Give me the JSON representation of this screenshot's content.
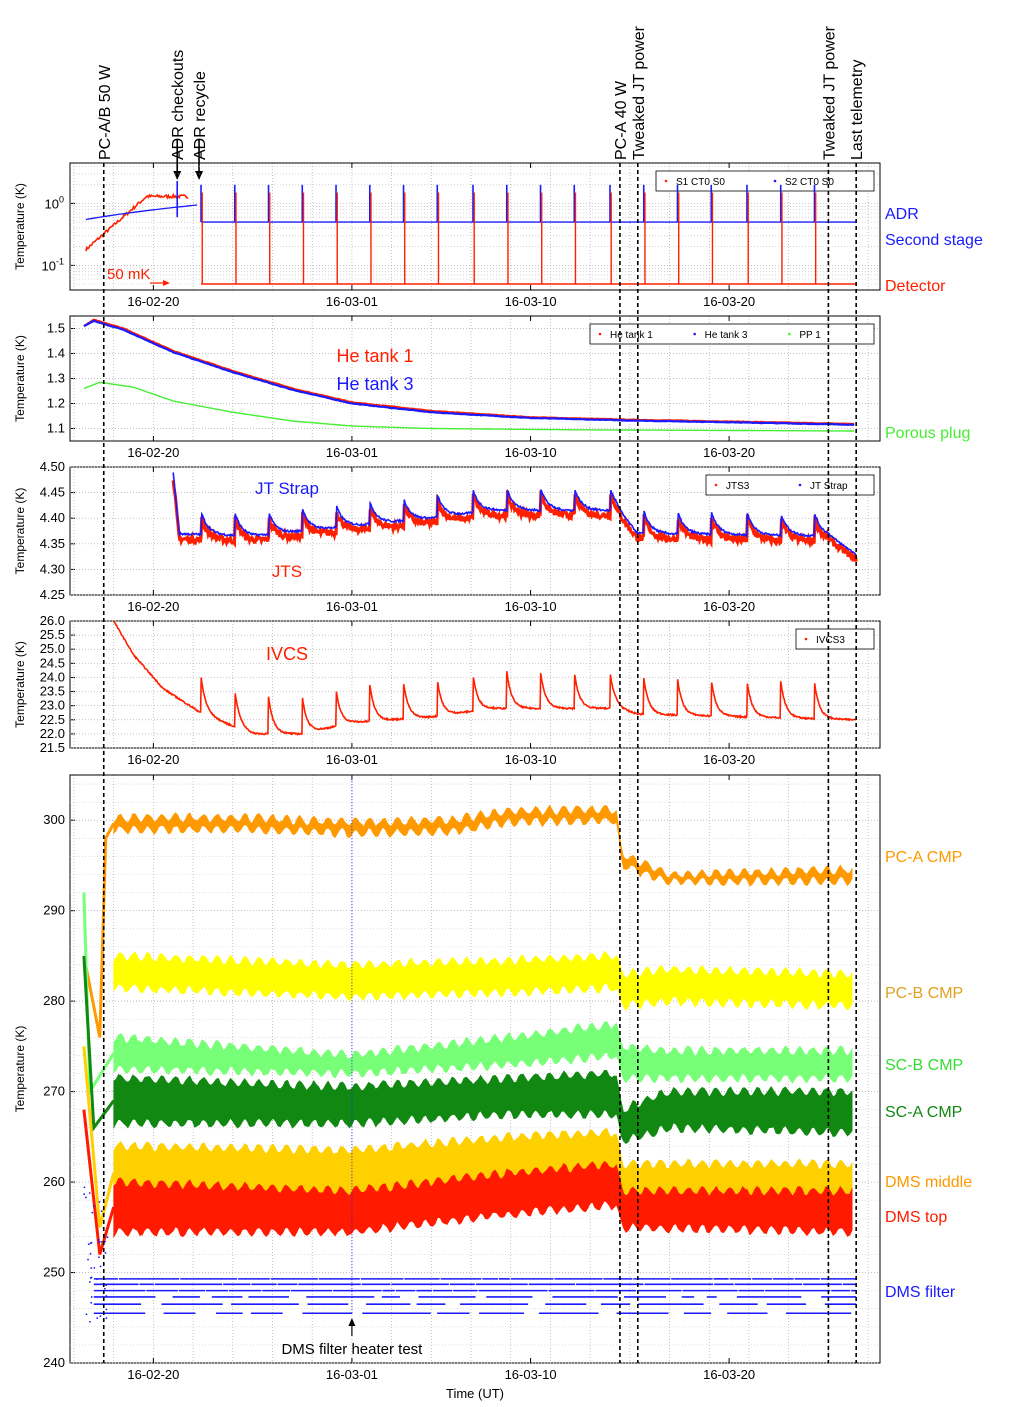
{
  "events": [
    {
      "label": "PC-A/B 50 W",
      "date": "2016-02-17.5"
    },
    {
      "label": "ADR checkouts",
      "date": "2016-02-21.2",
      "arrow": true
    },
    {
      "label": "ADR recycle",
      "date": "2016-02-22.3",
      "arrow": true
    },
    {
      "label": "PC-A 40 W",
      "date": "2016-03-14.5"
    },
    {
      "label": "Tweaked JT power",
      "date": "2016-03-15.4"
    },
    {
      "label": "Tweaked JT power",
      "date": "2016-03-25.0"
    },
    {
      "label": "Last telemetry",
      "date": "2016-03-26.4"
    }
  ],
  "x_ticks": [
    "16-02-20",
    "16-03-01",
    "16-03-10",
    "16-03-20"
  ],
  "xlabel": "Time (UT)",
  "ylabel": "Temperature (K)",
  "chart_data": [
    {
      "type": "line",
      "scale": "log",
      "ylabel": "Temperature (K)",
      "ylim": [
        0.04,
        4.5
      ],
      "yticks": [
        "10^0",
        "10^-1"
      ],
      "legend": [
        "S1 CT0 S0",
        "S2 CT0 S0"
      ],
      "legend_position": "top-right",
      "series": [
        {
          "name": "S1 CT0 S0",
          "label": "Detector",
          "color": "#ff2000",
          "recycle_peak_K": 1.5,
          "base_K": 0.05
        },
        {
          "name": "S2 CT0 S0",
          "label": "ADR Second stage",
          "color": "#1a1aff",
          "recycle_peak_K": 2.0,
          "base_K": 0.5
        }
      ],
      "annotations": [
        "50 mK"
      ],
      "side_labels": [
        "ADR",
        "Second stage",
        "Detector"
      ],
      "recycle_dates": [
        "2016-02-22.4",
        "2016-02-24.1",
        "2016-02-25.8",
        "2016-02-27.5",
        "2016-02-29.2",
        "2016-03-01.9",
        "2016-03-03.6",
        "2016-03-05.3",
        "2016-03-07.1",
        "2016-03-08.8",
        "2016-03-10.5",
        "2016-03-12.2",
        "2016-03-14.0",
        "2016-03-15.7",
        "2016-03-17.4",
        "2016-03-19.1",
        "2016-03-20.9",
        "2016-03-22.6",
        "2016-03-24.3"
      ],
      "grid": true
    },
    {
      "type": "line",
      "ylabel": "Temperature (K)",
      "ylim": [
        1.05,
        1.55
      ],
      "yticks": [
        "1.5",
        "1.4",
        "1.3",
        "1.2",
        "1.1"
      ],
      "legend": [
        "He tank 1",
        "He tank 3",
        "PP 1"
      ],
      "legend_position": "top-right",
      "series": [
        {
          "name": "He tank 1",
          "color": "#ff2000",
          "points": [
            [
              "2016-02-16.5",
              1.51
            ],
            [
              "2016-02-17.0",
              1.535
            ],
            [
              "2016-02-18.5",
              1.5
            ],
            [
              "2016-02-21.0",
              1.41
            ],
            [
              "2016-02-24.0",
              1.33
            ],
            [
              "2016-02-27.0",
              1.26
            ],
            [
              "2016-03-01.0",
              1.205
            ],
            [
              "2016-03-05.0",
              1.17
            ],
            [
              "2016-03-10.0",
              1.145
            ],
            [
              "2016-03-15.0",
              1.135
            ],
            [
              "2016-03-20.0",
              1.128
            ],
            [
              "2016-03-26.4",
              1.118
            ]
          ]
        },
        {
          "name": "He tank 3",
          "color": "#1a1aff",
          "points": [
            [
              "2016-02-16.5",
              1.51
            ],
            [
              "2016-02-17.0",
              1.53
            ],
            [
              "2016-02-18.5",
              1.495
            ],
            [
              "2016-02-21.0",
              1.405
            ],
            [
              "2016-02-24.0",
              1.325
            ],
            [
              "2016-02-27.0",
              1.255
            ],
            [
              "2016-03-01.0",
              1.2
            ],
            [
              "2016-03-05.0",
              1.165
            ],
            [
              "2016-03-10.0",
              1.142
            ],
            [
              "2016-03-15.0",
              1.132
            ],
            [
              "2016-03-20.0",
              1.125
            ],
            [
              "2016-03-26.4",
              1.115
            ]
          ]
        },
        {
          "name": "PP 1",
          "label": "Porous plug",
          "color": "#44ee33",
          "points": [
            [
              "2016-02-16.5",
              1.26
            ],
            [
              "2016-02-17.3",
              1.285
            ],
            [
              "2016-02-19.0",
              1.265
            ],
            [
              "2016-02-21.0",
              1.21
            ],
            [
              "2016-02-24.0",
              1.165
            ],
            [
              "2016-02-27.0",
              1.13
            ],
            [
              "2016-03-01.0",
              1.11
            ],
            [
              "2016-03-05.0",
              1.1
            ],
            [
              "2016-03-12.0",
              1.095
            ],
            [
              "2016-03-26.4",
              1.09
            ]
          ]
        }
      ],
      "side_labels": [
        "He tank 1",
        "He tank 3",
        "Porous plug"
      ],
      "grid": true
    },
    {
      "type": "line",
      "ylabel": "Temperature (K)",
      "ylim": [
        4.25,
        4.5
      ],
      "yticks": [
        "4.50",
        "4.45",
        "4.40",
        "4.35",
        "4.30",
        "4.25"
      ],
      "legend": [
        "JTS3",
        "JT Strap"
      ],
      "legend_position": "top-right",
      "series": [
        {
          "name": "JTS3",
          "label": "JTS",
          "color": "#ff2000",
          "levels": [
            [
              "2016-02-21.0",
              4.36
            ],
            [
              "2016-02-25.0",
              4.355
            ],
            [
              "2016-03-01.0",
              4.375
            ],
            [
              "2016-03-05.0",
              4.39
            ],
            [
              "2016-03-08.0",
              4.405
            ],
            [
              "2016-03-14.3",
              4.405
            ],
            [
              "2016-03-15.4",
              4.36
            ],
            [
              "2016-03-25.0",
              4.355
            ],
            [
              "2016-03-26.4",
              4.32
            ]
          ]
        },
        {
          "name": "JT Strap",
          "label": "JT Strap",
          "color": "#1a1aff",
          "levels": [
            [
              "2016-02-21.0",
              4.37
            ],
            [
              "2016-02-25.0",
              4.365
            ],
            [
              "2016-03-01.0",
              4.385
            ],
            [
              "2016-03-05.0",
              4.4
            ],
            [
              "2016-03-08.0",
              4.415
            ],
            [
              "2016-03-14.3",
              4.415
            ],
            [
              "2016-03-15.4",
              4.37
            ],
            [
              "2016-03-25.0",
              4.365
            ],
            [
              "2016-03-26.4",
              4.33
            ]
          ]
        }
      ],
      "side_labels": [
        "JT Strap",
        "JTS"
      ],
      "grid": true
    },
    {
      "type": "line",
      "ylabel": "Temperature (K)",
      "ylim": [
        21.5,
        26.0
      ],
      "yticks": [
        "26.0",
        "25.5",
        "25.0",
        "24.5",
        "24.0",
        "23.5",
        "23.0",
        "22.5",
        "22.0",
        "21.5"
      ],
      "legend": [
        "IVCS3"
      ],
      "legend_position": "top-right",
      "series": [
        {
          "name": "IVCS3",
          "label": "IVCS",
          "color": "#ff2000",
          "base": [
            [
              "2016-02-18.0",
              26.0
            ],
            [
              "2016-02-19.0",
              24.8
            ],
            [
              "2016-02-20.5",
              23.6
            ],
            [
              "2016-02-22.5",
              22.7
            ],
            [
              "2016-02-25.0",
              22.0
            ],
            [
              "2016-02-27.5",
              22.0
            ],
            [
              "2016-03-01.0",
              22.4
            ],
            [
              "2016-03-05.0",
              22.6
            ],
            [
              "2016-03-08.0",
              22.9
            ],
            [
              "2016-03-14.3",
              22.9
            ],
            [
              "2016-03-15.4",
              22.7
            ],
            [
              "2016-03-26.4",
              22.5
            ]
          ],
          "spike_height": 1.3
        }
      ],
      "side_labels": [
        "IVCS"
      ],
      "grid": true
    },
    {
      "type": "area",
      "ylabel": "Temperature (K)",
      "ylim": [
        240,
        305
      ],
      "yticks": [
        "300",
        "290",
        "280",
        "270",
        "260",
        "250",
        "240"
      ],
      "series": [
        {
          "name": "PC-A CMP",
          "color": "#ff9900",
          "band": [
            [
              "2016-02-18.0",
              299.0,
              300.3
            ],
            [
              "2016-02-25.0",
              299.0,
              300.2
            ],
            [
              "2016-03-01.0",
              298.6,
              299.8
            ],
            [
              "2016-03-06.0",
              298.8,
              300.0
            ],
            [
              "2016-03-09.0",
              299.8,
              301.0
            ],
            [
              "2016-03-14.3",
              300.0,
              301.2
            ],
            [
              "2016-03-14.6",
              295.0,
              296.2
            ],
            [
              "2016-03-17.0",
              293.2,
              294.0
            ],
            [
              "2016-03-26.3",
              293.3,
              294.5
            ]
          ],
          "startup": [
            [
              "2016-02-16.5",
              285.0
            ],
            [
              "2016-02-17.3",
              276.0
            ],
            [
              "2016-02-17.6",
              298.0
            ]
          ]
        },
        {
          "name": "PC-B CMP",
          "color": "#ffff00",
          "band": [
            [
              "2016-02-18.0",
              281.5,
              285.0
            ],
            [
              "2016-03-01.0",
              280.5,
              284.0
            ],
            [
              "2016-03-09.0",
              281.0,
              284.5
            ],
            [
              "2016-03-14.3",
              281.5,
              285.0
            ],
            [
              "2016-03-14.6",
              279.5,
              283.0
            ],
            [
              "2016-03-17.0",
              280.0,
              283.5
            ],
            [
              "2016-03-26.3",
              279.5,
              283.0
            ]
          ]
        },
        {
          "name": "SC-B CMP",
          "color": "#77ff77",
          "band": [
            [
              "2016-02-18.0",
              272.5,
              276.0
            ],
            [
              "2016-03-01.0",
              272.0,
              274.0
            ],
            [
              "2016-03-09.0",
              273.0,
              276.0
            ],
            [
              "2016-03-14.3",
              274.0,
              277.5
            ],
            [
              "2016-03-14.6",
              271.5,
              275.0
            ],
            [
              "2016-03-17.0",
              271.5,
              274.5
            ],
            [
              "2016-03-26.3",
              271.5,
              274.5
            ]
          ],
          "startup": [
            [
              "2016-02-16.5",
              292.0
            ],
            [
              "2016-02-16.8",
              270.0
            ]
          ]
        },
        {
          "name": "SC-A CMP",
          "color": "#118811",
          "band": [
            [
              "2016-02-18.0",
              266.5,
              271.5
            ],
            [
              "2016-03-01.0",
              266.5,
              270.5
            ],
            [
              "2016-03-09.0",
              267.5,
              271.5
            ],
            [
              "2016-03-14.3",
              267.5,
              272.0
            ],
            [
              "2016-03-14.6",
              264.5,
              268.0
            ],
            [
              "2016-03-17.0",
              266.0,
              270.0
            ],
            [
              "2016-03-26.3",
              265.5,
              270.0
            ]
          ],
          "startup": [
            [
              "2016-02-16.5",
              285.0
            ],
            [
              "2016-02-17.0",
              266.0
            ]
          ]
        },
        {
          "name": "DMS middle",
          "color": "#ffd000",
          "band": [
            [
              "2016-02-18.0",
              258.0,
              264.0
            ],
            [
              "2016-03-01.0",
              258.0,
              263.5
            ],
            [
              "2016-03-09.0",
              260.0,
              265.0
            ],
            [
              "2016-03-14.3",
              260.5,
              265.5
            ],
            [
              "2016-03-14.6",
              258.0,
              262.0
            ],
            [
              "2016-03-26.3",
              257.5,
              262.0
            ]
          ],
          "startup": [
            [
              "2016-02-16.5",
              275.0
            ],
            [
              "2016-02-17.3",
              255.0
            ]
          ]
        },
        {
          "name": "DMS top",
          "color": "#ff1a00",
          "band": [
            [
              "2016-02-18.0",
              254.5,
              260.0
            ],
            [
              "2016-03-01.0",
              254.5,
              259.0
            ],
            [
              "2016-03-09.0",
              256.5,
              261.0
            ],
            [
              "2016-03-14.3",
              257.5,
              262.0
            ],
            [
              "2016-03-14.6",
              255.0,
              259.0
            ],
            [
              "2016-03-26.3",
              254.5,
              259.0
            ]
          ],
          "startup": [
            [
              "2016-02-16.5",
              268.0
            ],
            [
              "2016-02-17.3",
              252.0
            ]
          ]
        },
        {
          "name": "DMS filter",
          "color": "#1a1aff",
          "levels": [
            245.5,
            246.5,
            247.3,
            248.0,
            248.7,
            249.3
          ],
          "heater_test_date": "2016-03-01.0",
          "heater_test_peak": 305
        }
      ],
      "annotations": [
        "DMS filter heater test"
      ],
      "grid": true
    }
  ]
}
